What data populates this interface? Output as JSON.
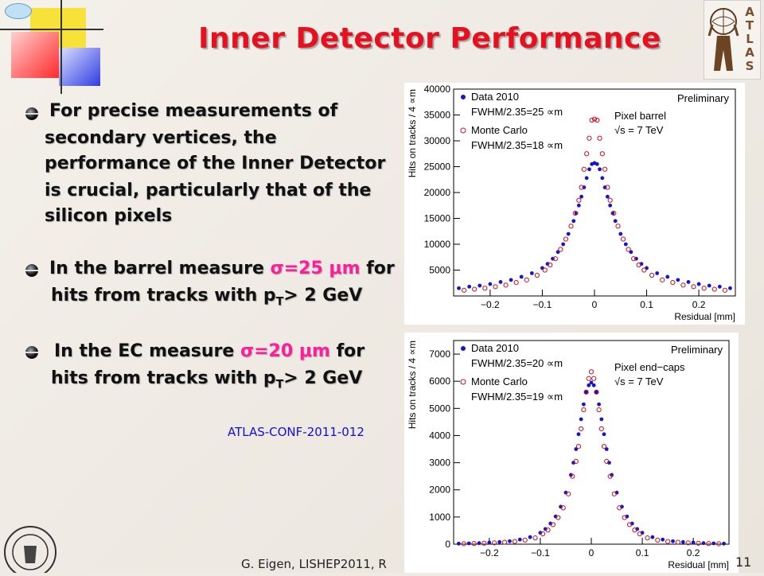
{
  "slide": {
    "title": "Inner Detector Performance",
    "bullets": [
      {
        "lines": [
          "For precise measurements of",
          "secondary vertices, the",
          "performance of the Inner Detector",
          "is crucial, particularly that of the",
          "silicon pixels"
        ]
      },
      {
        "pre": "In the barrel measure ",
        "highlight": "σ=25 μm",
        "post": " for",
        "line2_pre": "hits from tracks with p",
        "line2_sub": "T",
        "line2_post": "> 2 GeV"
      },
      {
        "pre": "In the EC measure ",
        "highlight": "σ=20 μm",
        "post": " for",
        "line2_pre": "hits from tracks with p",
        "line2_sub": "T",
        "line2_post": "> 2 GeV"
      }
    ],
    "reference": "ATLAS-CONF-2011-012",
    "footer": "G. Eigen, LISHEP2011, R",
    "page_number": "11",
    "logo_letters": "ATLAS",
    "colors": {
      "title": "#e6101e",
      "highlight": "#ff1e9a",
      "reference": "#1010d8",
      "data": "#1515d0",
      "mc": "#cc1020"
    }
  },
  "chart_data": [
    {
      "type": "scatter",
      "ylabel": "Hits on tracks / 4 ∝m",
      "xlabel": "Residual [mm]",
      "xlim": [
        -0.27,
        0.27
      ],
      "ylim": [
        0,
        40000
      ],
      "yticks": [
        "5000",
        "10000",
        "15000",
        "20000",
        "25000",
        "30000",
        "35000",
        "40000"
      ],
      "ytick_values": [
        5000,
        10000,
        15000,
        20000,
        25000,
        30000,
        35000,
        40000
      ],
      "xticks": [
        "−0.2",
        "−0.1",
        "0",
        "0.1",
        "0.2"
      ],
      "xtick_values": [
        -0.2,
        -0.1,
        0,
        0.1,
        0.2
      ],
      "annotations": [
        "Preliminary",
        "Pixel barrel",
        "√s = 7 TeV"
      ],
      "legend": [
        {
          "label": "Data 2010",
          "sub": "FWHM/2.35=25 ∝m",
          "marker": "dot"
        },
        {
          "label": "Monte Carlo",
          "sub": "FWHM/2.35=18 ∝m",
          "marker": "circle"
        }
      ],
      "series": [
        {
          "name": "Data 2010",
          "marker": "dot",
          "x": [
            -0.26,
            -0.24,
            -0.22,
            -0.2,
            -0.18,
            -0.16,
            -0.14,
            -0.12,
            -0.1,
            -0.09,
            -0.08,
            -0.07,
            -0.06,
            -0.05,
            -0.04,
            -0.035,
            -0.03,
            -0.025,
            -0.02,
            -0.015,
            -0.01,
            -0.005,
            0,
            0.005,
            0.01,
            0.015,
            0.02,
            0.025,
            0.03,
            0.035,
            0.04,
            0.05,
            0.06,
            0.07,
            0.08,
            0.09,
            0.1,
            0.12,
            0.14,
            0.16,
            0.18,
            0.2,
            0.22,
            0.24,
            0.26
          ],
          "y": [
            1500,
            1800,
            2000,
            2300,
            2700,
            3100,
            3700,
            4400,
            5400,
            6200,
            7200,
            8500,
            10000,
            12000,
            14500,
            16000,
            17500,
            19200,
            21000,
            22800,
            24500,
            25500,
            25700,
            25500,
            24500,
            22800,
            21000,
            19200,
            17500,
            16000,
            14500,
            12000,
            10000,
            8500,
            7200,
            6200,
            5400,
            4400,
            3700,
            3100,
            2700,
            2300,
            2000,
            1800,
            1500
          ]
        },
        {
          "name": "Monte Carlo",
          "marker": "circle",
          "x": [
            -0.25,
            -0.23,
            -0.21,
            -0.19,
            -0.17,
            -0.15,
            -0.13,
            -0.11,
            -0.095,
            -0.085,
            -0.075,
            -0.065,
            -0.055,
            -0.045,
            -0.037,
            -0.03,
            -0.025,
            -0.02,
            -0.015,
            -0.01,
            -0.005,
            0,
            0.005,
            0.01,
            0.015,
            0.02,
            0.025,
            0.03,
            0.037,
            0.045,
            0.055,
            0.065,
            0.075,
            0.085,
            0.095,
            0.11,
            0.13,
            0.15,
            0.17,
            0.19,
            0.21,
            0.23,
            0.25
          ],
          "y": [
            1100,
            1300,
            1500,
            1800,
            2100,
            2600,
            3100,
            4000,
            5000,
            6000,
            7200,
            9000,
            11000,
            13500,
            16000,
            18500,
            21000,
            24500,
            27500,
            30500,
            34000,
            34200,
            34000,
            30500,
            27500,
            24500,
            21000,
            18500,
            16000,
            13500,
            11000,
            9000,
            7200,
            6000,
            5000,
            4000,
            3100,
            2600,
            2100,
            1800,
            1500,
            1300,
            1100
          ]
        }
      ]
    },
    {
      "type": "scatter",
      "ylabel": "Hits on tracks / 4 ∝m",
      "xlabel": "Residual [mm]",
      "xlim": [
        -0.27,
        0.27
      ],
      "ylim": [
        0,
        7500
      ],
      "yticks": [
        "0",
        "1000",
        "2000",
        "3000",
        "4000",
        "5000",
        "6000",
        "7000"
      ],
      "ytick_values": [
        0,
        1000,
        2000,
        3000,
        4000,
        5000,
        6000,
        7000
      ],
      "xticks": [
        "−0.2",
        "−0.1",
        "0",
        "0.1",
        "0.2"
      ],
      "xtick_values": [
        -0.2,
        -0.1,
        0,
        0.1,
        0.2
      ],
      "annotations": [
        "Preliminary",
        "Pixel end−caps",
        "√s = 7 TeV"
      ],
      "legend": [
        {
          "label": "Data 2010",
          "sub": "FWHM/2.35=20 ∝m",
          "marker": "dot"
        },
        {
          "label": "Monte Carlo",
          "sub": "FWHM/2.35=19 ∝m",
          "marker": "circle"
        }
      ],
      "series": [
        {
          "name": "Data 2010",
          "marker": "dot",
          "x": [
            -0.26,
            -0.24,
            -0.22,
            -0.2,
            -0.18,
            -0.16,
            -0.14,
            -0.12,
            -0.1,
            -0.09,
            -0.08,
            -0.07,
            -0.06,
            -0.05,
            -0.04,
            -0.035,
            -0.03,
            -0.025,
            -0.02,
            -0.015,
            -0.01,
            -0.005,
            0,
            0.005,
            0.01,
            0.015,
            0.02,
            0.025,
            0.03,
            0.035,
            0.04,
            0.05,
            0.06,
            0.07,
            0.08,
            0.09,
            0.1,
            0.12,
            0.14,
            0.16,
            0.18,
            0.2,
            0.22,
            0.24,
            0.26
          ],
          "y": [
            20,
            30,
            40,
            60,
            80,
            110,
            170,
            260,
            420,
            560,
            760,
            1020,
            1380,
            1900,
            2550,
            3000,
            3500,
            4050,
            4600,
            5150,
            5600,
            5850,
            5950,
            5850,
            5600,
            5150,
            4600,
            4050,
            3500,
            3000,
            2550,
            1900,
            1380,
            1020,
            760,
            560,
            420,
            260,
            170,
            110,
            80,
            60,
            40,
            30,
            20
          ]
        },
        {
          "name": "Monte Carlo",
          "marker": "circle",
          "x": [
            -0.25,
            -0.23,
            -0.21,
            -0.19,
            -0.17,
            -0.15,
            -0.13,
            -0.11,
            -0.095,
            -0.085,
            -0.075,
            -0.065,
            -0.055,
            -0.045,
            -0.037,
            -0.03,
            -0.025,
            -0.02,
            -0.015,
            -0.01,
            -0.005,
            0,
            0.005,
            0.01,
            0.015,
            0.02,
            0.025,
            0.03,
            0.037,
            0.045,
            0.055,
            0.065,
            0.075,
            0.085,
            0.095,
            0.11,
            0.13,
            0.15,
            0.17,
            0.19,
            0.21,
            0.23,
            0.25
          ],
          "y": [
            15,
            25,
            35,
            50,
            70,
            100,
            150,
            230,
            380,
            520,
            720,
            980,
            1340,
            1850,
            2500,
            3050,
            3600,
            4250,
            4950,
            5600,
            6100,
            6350,
            6100,
            5600,
            4950,
            4250,
            3600,
            3050,
            2500,
            1850,
            1340,
            980,
            720,
            520,
            380,
            230,
            150,
            100,
            70,
            50,
            35,
            25,
            15
          ]
        }
      ]
    }
  ]
}
